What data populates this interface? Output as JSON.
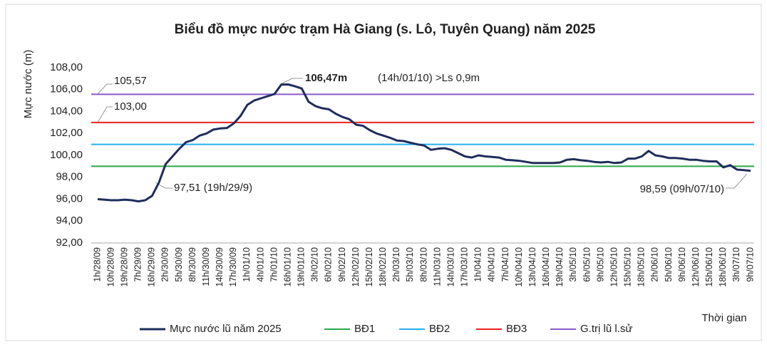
{
  "chart_data": {
    "type": "line",
    "title": "Biểu đồ mực nước trạm Hà Giang (s. Lô, Tuyên Quang) năm 2025",
    "y_label": "Mực nước (m)",
    "x_label": "Thời gian",
    "categories": [
      "1h/28/09",
      null,
      "10h/28/09",
      null,
      "19h/28/09",
      null,
      "7h/29/09",
      null,
      "16h/29/09",
      null,
      "2h/30/09",
      null,
      "5h/30/09",
      null,
      "8h/30/09",
      null,
      "11h/30/09",
      null,
      "14h/30/09",
      null,
      "17h/30/09",
      null,
      "1h/01/10",
      null,
      "4h/01/10",
      null,
      "7h/01/10",
      null,
      "16h/01/10",
      null,
      "19h/01/10",
      null,
      "3h/02/10",
      null,
      "6h/02/10",
      null,
      "9h/02/10",
      null,
      "12h/02/10",
      null,
      "15h/02/10",
      null,
      "18h/02/10",
      null,
      "2h/03/10",
      null,
      "5h/03/10",
      null,
      "8h/03/10",
      null,
      "11h/03/10",
      null,
      "14h/03/10",
      null,
      "17h/03/10",
      null,
      "1h/04/10",
      null,
      "4h/04/10",
      null,
      "7h/04/10",
      null,
      "10h/04/10",
      null,
      "13h/04/10",
      null,
      "16h/04/10",
      null,
      "19h/04/10",
      null,
      "3h/05/10",
      null,
      "6h/05/10",
      null,
      "9h/05/10",
      null,
      "12h/05/10",
      null,
      "15h/05/10",
      null,
      "18h/05/10",
      null,
      "2h/06/10",
      null,
      "5h/06/10",
      null,
      "9h/06/10",
      null,
      "12h/06/10",
      null,
      "15h/06/10",
      null,
      "18h/06/10",
      null,
      "3h/07/10",
      null,
      "9h/07/10"
    ],
    "series": [
      {
        "name": "Mực nước lũ năm 2025",
        "color": "#1f2d5c",
        "values": [
          96.0,
          95.95,
          95.9,
          95.9,
          95.95,
          95.9,
          95.8,
          95.9,
          96.3,
          97.51,
          99.2,
          99.9,
          100.6,
          101.2,
          101.4,
          101.8,
          102.0,
          102.35,
          102.45,
          102.5,
          102.9,
          103.6,
          104.6,
          105.0,
          105.2,
          105.4,
          105.6,
          106.45,
          106.47,
          106.3,
          106.1,
          104.9,
          104.5,
          104.3,
          104.2,
          103.8,
          103.5,
          103.3,
          102.8,
          102.7,
          102.3,
          102.0,
          101.8,
          101.6,
          101.35,
          101.3,
          101.15,
          101.0,
          100.9,
          100.5,
          100.6,
          100.65,
          100.5,
          100.2,
          99.9,
          99.8,
          100.0,
          99.9,
          99.85,
          99.8,
          99.6,
          99.55,
          99.5,
          99.4,
          99.3,
          99.3,
          99.3,
          99.3,
          99.35,
          99.6,
          99.65,
          99.55,
          99.5,
          99.4,
          99.35,
          99.4,
          99.3,
          99.35,
          99.7,
          99.7,
          99.9,
          100.4,
          100.0,
          99.9,
          99.75,
          99.75,
          99.7,
          99.6,
          99.6,
          99.5,
          99.45,
          99.45,
          98.9,
          99.1,
          98.7,
          98.65,
          98.59
        ]
      }
    ],
    "reference_lines": [
      {
        "name": "BĐ1",
        "color": "#2aa84a",
        "value": 99
      },
      {
        "name": "BĐ2",
        "color": "#26b0ef",
        "value": 101
      },
      {
        "name": "BĐ3",
        "color": "#ee2222",
        "value": 103
      },
      {
        "name": "G.trị lũ l.sử",
        "color": "#8a5cc8",
        "value": 105.57
      }
    ],
    "annotations": [
      "105,57",
      "103,00",
      "97,51 (19h/29/9)",
      "98,59 (09h/07/10)",
      "106,47m",
      "(14h/01/10) >Ls 0,9m"
    ],
    "ylim": [
      92,
      108
    ],
    "yticks": [
      {
        "value": 92,
        "label": "92,00"
      },
      {
        "value": 94,
        "label": "94,00"
      },
      {
        "value": 96,
        "label": "96,00"
      },
      {
        "value": 98,
        "label": "98,00"
      },
      {
        "value": 100,
        "label": "100,00"
      },
      {
        "value": 102,
        "label": "102,00"
      },
      {
        "value": 104,
        "label": "104,00"
      },
      {
        "value": 106,
        "label": "106,00"
      },
      {
        "value": 108,
        "label": "108,00"
      }
    ],
    "grid": false
  }
}
